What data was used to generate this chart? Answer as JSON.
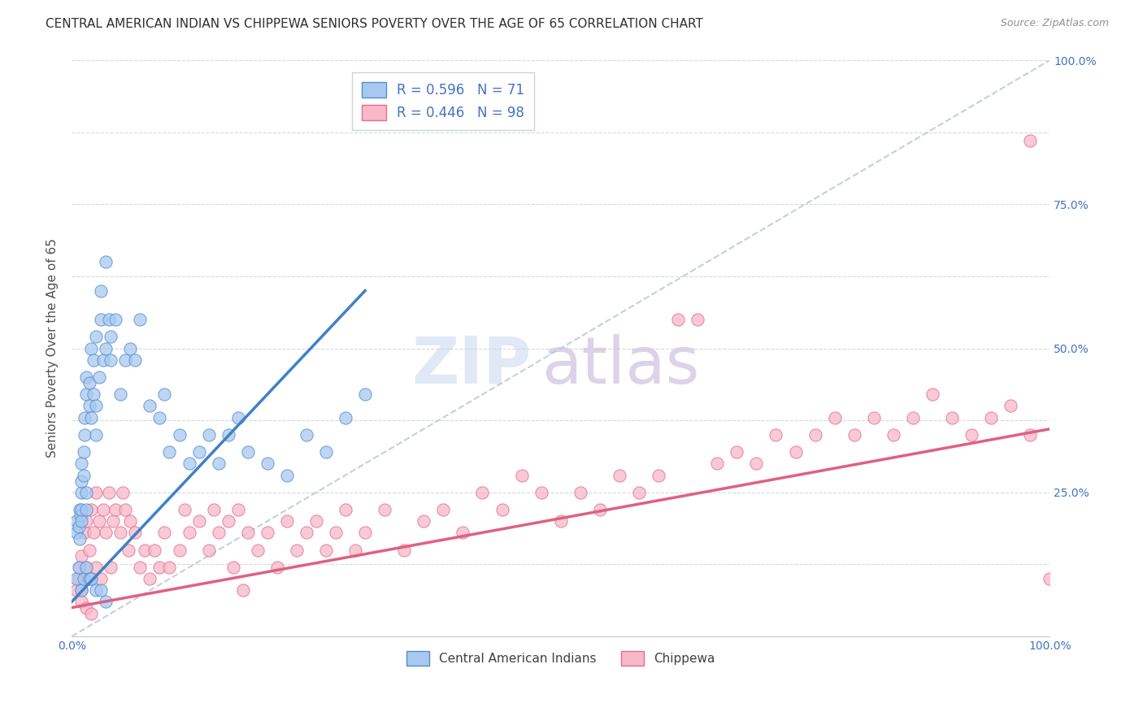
{
  "title": "CENTRAL AMERICAN INDIAN VS CHIPPEWA SENIORS POVERTY OVER THE AGE OF 65 CORRELATION CHART",
  "source": "Source: ZipAtlas.com",
  "ylabel": "Seniors Poverty Over the Age of 65",
  "xlim": [
    0,
    1
  ],
  "ylim": [
    0,
    1
  ],
  "color_blue_fill": "#A8C8F0",
  "color_blue_edge": "#5090D0",
  "color_pink_fill": "#F8B8C8",
  "color_pink_edge": "#E07090",
  "color_blue_line": "#4080C8",
  "color_pink_line": "#E06080",
  "color_diag": "#B8C4D4",
  "blue_scatter_x": [
    0.005,
    0.005,
    0.007,
    0.008,
    0.008,
    0.009,
    0.01,
    0.01,
    0.01,
    0.01,
    0.01,
    0.012,
    0.012,
    0.013,
    0.013,
    0.015,
    0.015,
    0.015,
    0.015,
    0.018,
    0.018,
    0.02,
    0.02,
    0.022,
    0.022,
    0.025,
    0.025,
    0.025,
    0.028,
    0.03,
    0.03,
    0.032,
    0.035,
    0.035,
    0.038,
    0.04,
    0.04,
    0.045,
    0.05,
    0.055,
    0.06,
    0.065,
    0.07,
    0.08,
    0.09,
    0.095,
    0.1,
    0.11,
    0.12,
    0.13,
    0.14,
    0.15,
    0.16,
    0.17,
    0.18,
    0.2,
    0.22,
    0.24,
    0.26,
    0.28,
    0.3,
    0.005,
    0.007,
    0.01,
    0.012,
    0.015,
    0.018,
    0.02,
    0.025,
    0.03,
    0.035
  ],
  "blue_scatter_y": [
    0.18,
    0.2,
    0.19,
    0.22,
    0.17,
    0.21,
    0.2,
    0.22,
    0.25,
    0.27,
    0.3,
    0.28,
    0.32,
    0.35,
    0.38,
    0.22,
    0.25,
    0.42,
    0.45,
    0.4,
    0.44,
    0.38,
    0.5,
    0.42,
    0.48,
    0.35,
    0.4,
    0.52,
    0.45,
    0.55,
    0.6,
    0.48,
    0.5,
    0.65,
    0.55,
    0.48,
    0.52,
    0.55,
    0.42,
    0.48,
    0.5,
    0.48,
    0.55,
    0.4,
    0.38,
    0.42,
    0.32,
    0.35,
    0.3,
    0.32,
    0.35,
    0.3,
    0.35,
    0.38,
    0.32,
    0.3,
    0.28,
    0.35,
    0.32,
    0.38,
    0.42,
    0.1,
    0.12,
    0.08,
    0.1,
    0.12,
    0.1,
    0.1,
    0.08,
    0.08,
    0.06
  ],
  "pink_scatter_x": [
    0.005,
    0.007,
    0.008,
    0.01,
    0.01,
    0.012,
    0.013,
    0.015,
    0.015,
    0.018,
    0.02,
    0.022,
    0.025,
    0.025,
    0.028,
    0.03,
    0.032,
    0.035,
    0.038,
    0.04,
    0.042,
    0.045,
    0.05,
    0.052,
    0.055,
    0.058,
    0.06,
    0.065,
    0.07,
    0.075,
    0.08,
    0.085,
    0.09,
    0.095,
    0.1,
    0.11,
    0.115,
    0.12,
    0.13,
    0.14,
    0.145,
    0.15,
    0.16,
    0.165,
    0.17,
    0.175,
    0.18,
    0.19,
    0.2,
    0.21,
    0.22,
    0.23,
    0.24,
    0.25,
    0.26,
    0.27,
    0.28,
    0.29,
    0.3,
    0.32,
    0.34,
    0.36,
    0.38,
    0.4,
    0.42,
    0.44,
    0.46,
    0.48,
    0.5,
    0.52,
    0.54,
    0.56,
    0.58,
    0.6,
    0.62,
    0.64,
    0.66,
    0.68,
    0.7,
    0.72,
    0.74,
    0.76,
    0.78,
    0.8,
    0.82,
    0.84,
    0.86,
    0.88,
    0.9,
    0.92,
    0.94,
    0.96,
    0.98,
    1.0,
    0.01,
    0.015,
    0.02,
    0.98
  ],
  "pink_scatter_y": [
    0.08,
    0.1,
    0.12,
    0.08,
    0.14,
    0.1,
    0.18,
    0.12,
    0.2,
    0.15,
    0.22,
    0.18,
    0.12,
    0.25,
    0.2,
    0.1,
    0.22,
    0.18,
    0.25,
    0.12,
    0.2,
    0.22,
    0.18,
    0.25,
    0.22,
    0.15,
    0.2,
    0.18,
    0.12,
    0.15,
    0.1,
    0.15,
    0.12,
    0.18,
    0.12,
    0.15,
    0.22,
    0.18,
    0.2,
    0.15,
    0.22,
    0.18,
    0.2,
    0.12,
    0.22,
    0.08,
    0.18,
    0.15,
    0.18,
    0.12,
    0.2,
    0.15,
    0.18,
    0.2,
    0.15,
    0.18,
    0.22,
    0.15,
    0.18,
    0.22,
    0.15,
    0.2,
    0.22,
    0.18,
    0.25,
    0.22,
    0.28,
    0.25,
    0.2,
    0.25,
    0.22,
    0.28,
    0.25,
    0.28,
    0.55,
    0.55,
    0.3,
    0.32,
    0.3,
    0.35,
    0.32,
    0.35,
    0.38,
    0.35,
    0.38,
    0.35,
    0.38,
    0.42,
    0.38,
    0.35,
    0.38,
    0.4,
    0.35,
    0.1,
    0.06,
    0.05,
    0.04,
    0.86
  ],
  "blue_line_x": [
    0.0,
    0.3
  ],
  "blue_line_y": [
    0.06,
    0.6
  ],
  "pink_line_x": [
    0.0,
    1.0
  ],
  "pink_line_y": [
    0.05,
    0.36
  ],
  "diag_line_x": [
    0.0,
    1.0
  ],
  "diag_line_y": [
    0.0,
    1.0
  ],
  "right_yticks": [
    0.25,
    0.5,
    0.75,
    1.0
  ],
  "right_ytick_labels": [
    "25.0%",
    "50.0%",
    "75.0%",
    "100.0%"
  ]
}
